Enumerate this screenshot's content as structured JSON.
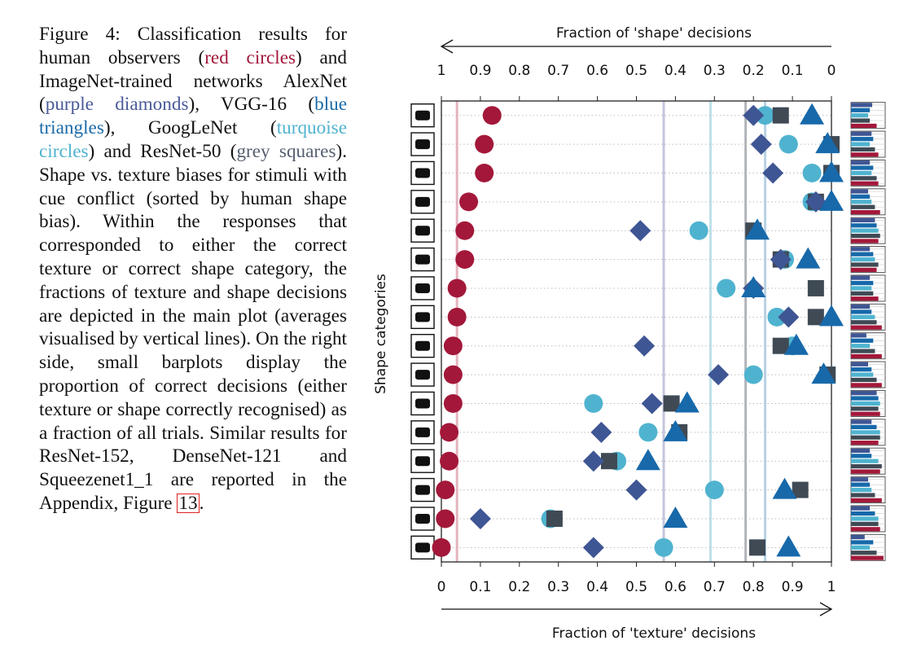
{
  "caption": {
    "fig_label": "Figure 4:",
    "t1": " Classification results for human observers (",
    "red": "red circles",
    "t2": ") and ImageNet-trained networks AlexNet (",
    "purple": "purple diamonds",
    "t3": "), VGG-16 (",
    "blue": "blue triangles",
    "t4": "), GoogLeNet (",
    "turq": "turquoise circles",
    "t5": ") and ResNet-50 (",
    "grey": "grey squares",
    "t6": "). Shape vs. texture biases for stimuli with cue conflict (sorted by human shape bias). Within the responses that corresponded to either the correct texture or correct shape category, the fractions of texture and shape decisions are depicted in the main plot (averages visualised by vertical lines). On the right side, small barplots display the proportion of correct decisions (either texture or shape correctly recognised) as a fraction of all trials. Similar results for ResNet-152, DenseNet-121 and Squeezenet1_1 are reported in the Appendix, Figure ",
    "ref": "13",
    "t7": "."
  },
  "chart_data": {
    "type": "scatter",
    "title": "",
    "xlabel": "Fraction of 'texture' decisions",
    "xlabel_top": "Fraction of 'shape' decisions",
    "ylabel": "Shape categories",
    "xlim": [
      0,
      1
    ],
    "xticks": [
      "0",
      "0.1",
      "0.2",
      "0.3",
      "0.4",
      "0.5",
      "0.6",
      "0.7",
      "0.8",
      "0.9",
      "1"
    ],
    "xticks_top": [
      "1",
      "0.9",
      "0.8",
      "0.7",
      "0.6",
      "0.5",
      "0.4",
      "0.3",
      "0.2",
      "0.1",
      "0"
    ],
    "categories": [
      "boat",
      "knife",
      "airplane",
      "bear",
      "dog",
      "keyboard",
      "cat",
      "elephant",
      "oven",
      "bird",
      "car",
      "truck",
      "bottle",
      "chair",
      "clock",
      "bicycle"
    ],
    "colors": {
      "human": "#a3183a",
      "alexnet": "#3f5694",
      "vgg16": "#1769aa",
      "googlenet": "#4fb3cf",
      "resnet50": "#3f4a55"
    },
    "series": [
      {
        "name": "human",
        "marker": "circle",
        "values": [
          0.13,
          0.11,
          0.11,
          0.07,
          0.06,
          0.06,
          0.04,
          0.04,
          0.03,
          0.03,
          0.03,
          0.02,
          0.02,
          0.01,
          0.01,
          0.0
        ]
      },
      {
        "name": "alexnet",
        "marker": "diamond",
        "values": [
          0.8,
          0.82,
          0.85,
          0.96,
          0.51,
          0.87,
          0.8,
          0.89,
          0.52,
          0.71,
          0.54,
          0.41,
          0.39,
          0.5,
          0.1,
          0.39
        ]
      },
      {
        "name": "vgg16",
        "marker": "triangle",
        "values": [
          0.95,
          0.99,
          1.0,
          1.0,
          0.81,
          0.94,
          0.8,
          1.0,
          0.91,
          0.98,
          0.63,
          0.6,
          0.53,
          0.88,
          0.6,
          0.89
        ]
      },
      {
        "name": "googlenet",
        "marker": "circle",
        "values": [
          0.83,
          0.89,
          0.95,
          0.95,
          0.66,
          0.88,
          0.73,
          0.86,
          0.9,
          0.8,
          0.39,
          0.53,
          0.45,
          0.7,
          0.28,
          0.57
        ]
      },
      {
        "name": "resnet50",
        "marker": "square",
        "values": [
          0.87,
          1.0,
          1.0,
          0.96,
          0.8,
          0.87,
          0.96,
          0.96,
          0.87,
          0.99,
          0.59,
          0.61,
          0.43,
          0.92,
          0.29,
          0.81
        ]
      }
    ],
    "averages": {
      "human": 0.04,
      "alexnet": 0.57,
      "vgg16": 0.83,
      "googlenet": 0.69,
      "resnet50": 0.78
    },
    "barplot_accuracy": [
      [
        0.62,
        0.55,
        0.5,
        0.55,
        0.75
      ],
      [
        0.6,
        0.65,
        0.55,
        0.7,
        0.8
      ],
      [
        0.55,
        0.65,
        0.6,
        0.75,
        0.8
      ],
      [
        0.5,
        0.55,
        0.6,
        0.7,
        0.85
      ],
      [
        0.7,
        0.75,
        0.8,
        0.85,
        0.8
      ],
      [
        0.55,
        0.65,
        0.7,
        0.8,
        0.75
      ],
      [
        0.55,
        0.65,
        0.6,
        0.65,
        0.8
      ],
      [
        0.55,
        0.6,
        0.7,
        0.75,
        0.9
      ],
      [
        0.45,
        0.65,
        0.55,
        0.7,
        0.9
      ],
      [
        0.5,
        0.6,
        0.65,
        0.75,
        0.9
      ],
      [
        0.75,
        0.8,
        0.85,
        0.8,
        0.85
      ],
      [
        0.6,
        0.75,
        0.85,
        0.85,
        0.8
      ],
      [
        0.55,
        0.6,
        0.8,
        0.9,
        0.85
      ],
      [
        0.5,
        0.55,
        0.6,
        0.7,
        0.9
      ],
      [
        0.55,
        0.7,
        0.8,
        0.8,
        0.85
      ],
      [
        0.4,
        0.65,
        0.55,
        0.75,
        0.95
      ]
    ],
    "barplot_series": [
      "alexnet",
      "vgg16",
      "googlenet",
      "resnet50",
      "human"
    ]
  }
}
